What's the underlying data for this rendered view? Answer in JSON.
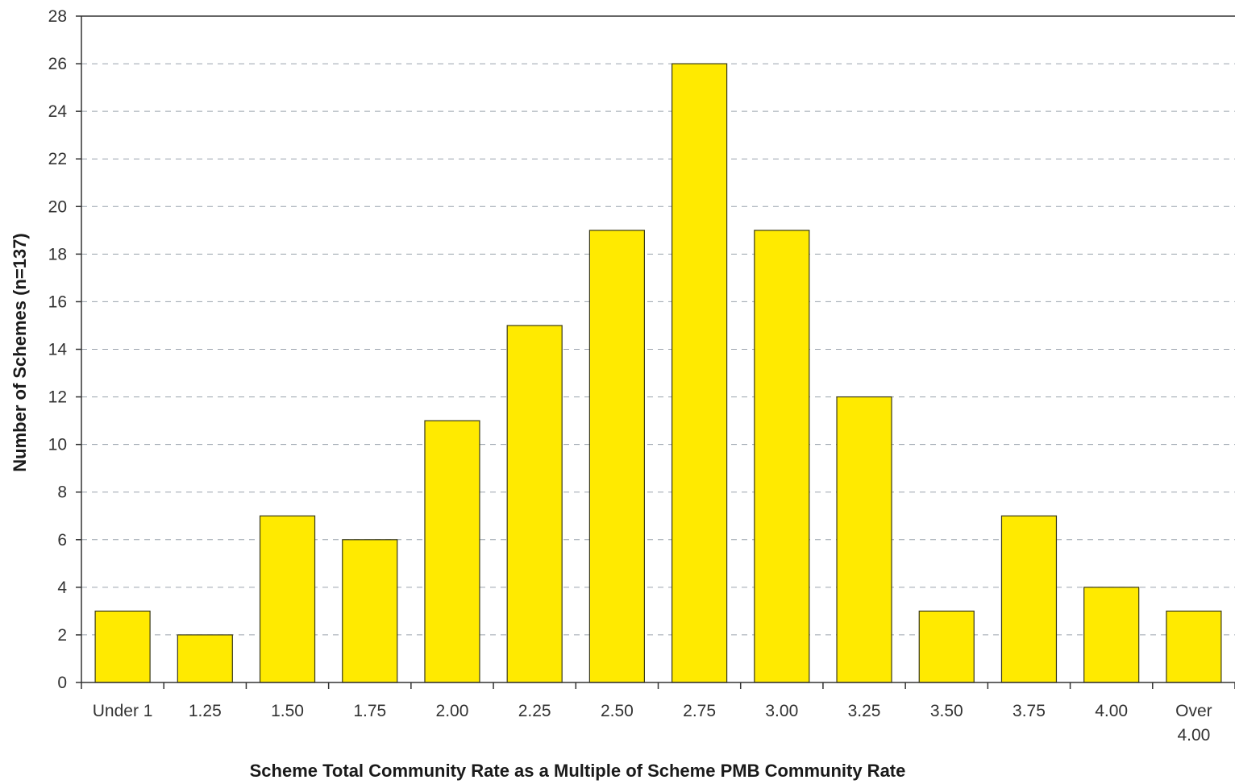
{
  "chart_data": {
    "type": "bar",
    "title": "",
    "xlabel": "Scheme Total Community Rate as a Multiple of Scheme PMB Community Rate",
    "ylabel": "Number of Schemes (n=137)",
    "categories": [
      [
        "Under 1"
      ],
      [
        "1.25"
      ],
      [
        "1.50"
      ],
      [
        "1.75"
      ],
      [
        "2.00"
      ],
      [
        "2.25"
      ],
      [
        "2.50"
      ],
      [
        "2.75"
      ],
      [
        "3.00"
      ],
      [
        "3.25"
      ],
      [
        "3.50"
      ],
      [
        "3.75"
      ],
      [
        "4.00"
      ],
      [
        "Over",
        "4.00"
      ]
    ],
    "values": [
      3,
      2,
      7,
      6,
      11,
      15,
      19,
      26,
      19,
      12,
      3,
      7,
      4,
      3
    ],
    "ylim": [
      0,
      28
    ],
    "yticks": [
      "0",
      "2",
      "4",
      "6",
      "8",
      "10",
      "12",
      "14",
      "16",
      "18",
      "20",
      "22",
      "24",
      "26",
      "28"
    ],
    "grid": true,
    "legend": "none",
    "bar_color": "#ffea00",
    "bar_edge_color": "#3a3a1a"
  }
}
